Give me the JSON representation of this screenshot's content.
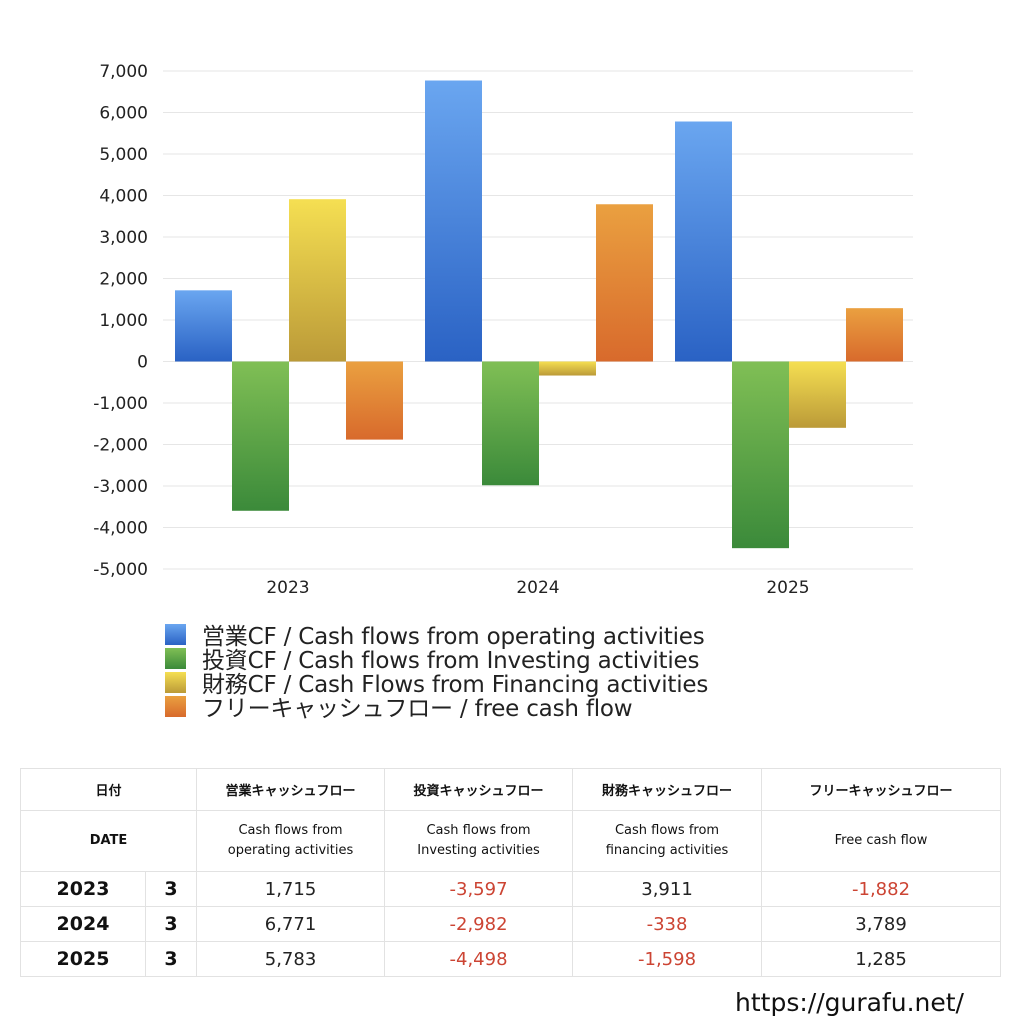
{
  "chart_data": {
    "type": "bar",
    "title": "",
    "xlabel": "",
    "ylabel": "",
    "categories": [
      "2023",
      "2024",
      "2025"
    ],
    "ylim": [
      -5000,
      7000
    ],
    "yticks": [
      7000,
      6000,
      5000,
      4000,
      3000,
      2000,
      1000,
      0,
      -1000,
      -2000,
      -3000,
      -4000,
      -5000
    ],
    "ytick_labels": [
      "7,000",
      "6,000",
      "5,000",
      "4,000",
      "3,000",
      "2,000",
      "1,000",
      "0",
      "-1,000",
      "-2,000",
      "-3,000",
      "-4,000",
      "-5,000"
    ],
    "grid": true,
    "legend_position": "bottom",
    "series": [
      {
        "name": "営業CF / Cash flows from operating activities",
        "values": [
          1715,
          6771,
          5783
        ],
        "color_top": "#6aa6f0",
        "color_bottom": "#2a62c4"
      },
      {
        "name": "投資CF / Cash flows from Investing activities",
        "values": [
          -3597,
          -2982,
          -4498
        ],
        "color_top": "#80bf55",
        "color_bottom": "#3b8a3a"
      },
      {
        "name": "財務CF / Cash Flows from Financing activities",
        "values": [
          3911,
          -338,
          -1598
        ],
        "color_top": "#f5df52",
        "color_bottom": "#bb9a38"
      },
      {
        "name": "フリーキャッシュフロー / free cash flow",
        "values": [
          -1882,
          3789,
          1285
        ],
        "color_top": "#eaa040",
        "color_bottom": "#d86a2c"
      }
    ]
  },
  "legend": {
    "items": [
      {
        "label": "営業CF / Cash flows from operating activities"
      },
      {
        "label": "投資CF / Cash flows from Investing activities"
      },
      {
        "label": "財務CF / Cash Flows from Financing activities"
      },
      {
        "label": "フリーキャッシュフロー / free cash flow"
      }
    ]
  },
  "table": {
    "header_jp": {
      "date": "日付",
      "operating": "営業キャッシュフロー",
      "investing": "投資キャッシュフロー",
      "financing": "財務キャッシュフロー",
      "free": "フリーキャッシュフロー"
    },
    "header_en": {
      "date": "DATE",
      "operating_1": "Cash flows from",
      "operating_2": "operating activities",
      "investing_1": "Cash flows from",
      "investing_2": "Investing activities",
      "financing_1": "Cash flows from",
      "financing_2": "financing activities",
      "free": "Free cash flow"
    },
    "rows": [
      {
        "year": "2023",
        "month": "3",
        "operating": "1,715",
        "investing": "-3,597",
        "financing": "3,911",
        "free": "-1,882"
      },
      {
        "year": "2024",
        "month": "3",
        "operating": "6,771",
        "investing": "-2,982",
        "financing": "-338",
        "free": "3,789"
      },
      {
        "year": "2025",
        "month": "3",
        "operating": "5,783",
        "investing": "-4,498",
        "financing": "-1,598",
        "free": "1,285"
      }
    ]
  },
  "footer": {
    "url": "https://gurafu.net/"
  }
}
